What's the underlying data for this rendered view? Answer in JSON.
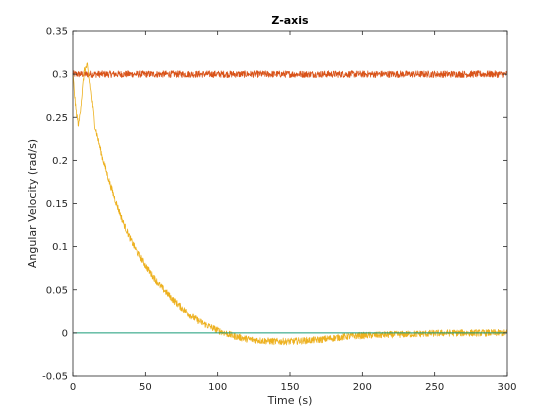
{
  "chart_data": {
    "type": "line",
    "title": "Z-axis",
    "xlabel": "Time (s)",
    "ylabel": "Angular Velocity (rad/s)",
    "xlim": [
      0,
      300
    ],
    "ylim": [
      -0.05,
      0.35
    ],
    "x_ticks": [
      "0",
      "50",
      "100",
      "150",
      "200",
      "250",
      "300"
    ],
    "y_ticks": [
      "-0.05",
      "0",
      "0.05",
      "0.1",
      "0.15",
      "0.2",
      "0.25",
      "0.3",
      "0.35"
    ],
    "grid": false,
    "legend": "none",
    "series": [
      {
        "color": "#D95319",
        "x": [
          0,
          25,
          50,
          75,
          100,
          125,
          150,
          175,
          200,
          225,
          250,
          275,
          300
        ],
        "y": [
          0.3,
          0.3,
          0.3,
          0.3,
          0.3,
          0.3,
          0.3,
          0.3,
          0.3,
          0.3,
          0.3,
          0.3,
          0.3
        ],
        "noise": 0.004
      },
      {
        "color": "#EDB120",
        "x": [
          0,
          2,
          4,
          6,
          8,
          10,
          12,
          15,
          20,
          25,
          30,
          35,
          40,
          45,
          50,
          55,
          60,
          65,
          70,
          75,
          80,
          85,
          90,
          95,
          100,
          110,
          120,
          130,
          140,
          150,
          160,
          170,
          180,
          190,
          200,
          220,
          240,
          260,
          280,
          300
        ],
        "y": [
          0.3,
          0.26,
          0.24,
          0.27,
          0.305,
          0.31,
          0.285,
          0.24,
          0.205,
          0.175,
          0.15,
          0.127,
          0.108,
          0.092,
          0.078,
          0.066,
          0.055,
          0.046,
          0.037,
          0.029,
          0.022,
          0.016,
          0.011,
          0.007,
          0.003,
          -0.003,
          -0.007,
          -0.009,
          -0.01,
          -0.01,
          -0.009,
          -0.008,
          -0.006,
          -0.004,
          -0.003,
          -0.002,
          -0.001,
          0.0,
          0.0,
          0.0
        ],
        "noise": 0.004
      },
      {
        "color": "#189B77",
        "x": [
          0,
          300
        ],
        "y": [
          0,
          0
        ],
        "noise": 0
      }
    ]
  }
}
